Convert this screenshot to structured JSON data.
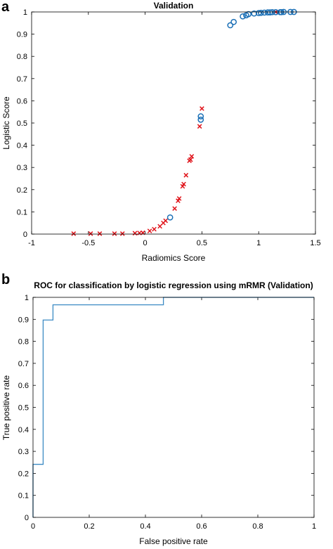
{
  "panels": {
    "a": {
      "label": "a"
    },
    "b": {
      "label": "b"
    }
  },
  "colors": {
    "cross": "#e0141b",
    "circle": "#1a6fb6",
    "roc_line": "#3b8ac4",
    "axis": "#000000"
  },
  "chart_data": [
    {
      "type": "scatter",
      "title": "Validation",
      "xlabel": "Radiomics Score",
      "ylabel": "Logistic Score",
      "xlim": [
        -1,
        1.5
      ],
      "ylim": [
        0,
        1
      ],
      "xticks": [
        -1,
        -0.5,
        0,
        0.5,
        1,
        1.5
      ],
      "xtick_labels": [
        "-1",
        "-0.5",
        "0",
        "0.5",
        "1",
        "1.5"
      ],
      "yticks": [
        0,
        0.1,
        0.2,
        0.3,
        0.4,
        0.5,
        0.6,
        0.7,
        0.8,
        0.9,
        1
      ],
      "ytick_labels": [
        "0",
        "0.1",
        "0.2",
        "0.3",
        "0.4",
        "0.5",
        "0.6",
        "0.7",
        "0.8",
        "0.9",
        "1"
      ],
      "grid": false,
      "series": [
        {
          "marker": "x",
          "color": "#e0141b",
          "points": [
            [
              -0.63,
              0.002
            ],
            [
              -0.48,
              0.002
            ],
            [
              -0.4,
              0.002
            ],
            [
              -0.27,
              0.002
            ],
            [
              -0.2,
              0.002
            ],
            [
              -0.09,
              0.004
            ],
            [
              -0.05,
              0.005
            ],
            [
              -0.02,
              0.006
            ],
            [
              0.04,
              0.014
            ],
            [
              0.08,
              0.022
            ],
            [
              0.13,
              0.035
            ],
            [
              0.16,
              0.05
            ],
            [
              0.18,
              0.06
            ],
            [
              0.26,
              0.115
            ],
            [
              0.29,
              0.15
            ],
            [
              0.3,
              0.16
            ],
            [
              0.33,
              0.215
            ],
            [
              0.34,
              0.225
            ],
            [
              0.36,
              0.265
            ],
            [
              0.39,
              0.33
            ],
            [
              0.4,
              0.335
            ],
            [
              0.41,
              0.35
            ],
            [
              0.48,
              0.485
            ],
            [
              0.5,
              0.565
            ],
            [
              1.15,
              1.0
            ]
          ]
        },
        {
          "marker": "o",
          "color": "#1a6fb6",
          "points": [
            [
              0.22,
              0.075
            ],
            [
              0.49,
              0.515
            ],
            [
              0.49,
              0.53
            ],
            [
              0.75,
              0.94
            ],
            [
              0.78,
              0.955
            ],
            [
              0.86,
              0.98
            ],
            [
              0.89,
              0.985
            ],
            [
              0.91,
              0.99
            ],
            [
              0.96,
              0.993
            ],
            [
              1.0,
              0.995
            ],
            [
              1.02,
              0.996
            ],
            [
              1.05,
              0.997
            ],
            [
              1.08,
              0.998
            ],
            [
              1.1,
              0.998
            ],
            [
              1.12,
              0.999
            ],
            [
              1.15,
              0.999
            ],
            [
              1.19,
              0.999
            ],
            [
              1.2,
              0.999
            ],
            [
              1.22,
              1.0
            ],
            [
              1.28,
              1.0
            ],
            [
              1.31,
              1.0
            ]
          ]
        }
      ]
    },
    {
      "type": "line",
      "title": "ROC for classification by logistic regression using mRMR (Validation)",
      "xlabel": "False positive rate",
      "ylabel": "True positive rate",
      "xlim": [
        0,
        1
      ],
      "ylim": [
        0,
        1
      ],
      "xticks": [
        0,
        0.2,
        0.4,
        0.6,
        0.8,
        1
      ],
      "xtick_labels": [
        "0",
        "0.2",
        "0.4",
        "0.6",
        "0.8",
        "1"
      ],
      "yticks": [
        0,
        0.1,
        0.2,
        0.3,
        0.4,
        0.5,
        0.6,
        0.7,
        0.8,
        0.9,
        1
      ],
      "ytick_labels": [
        "0",
        "0.1",
        "0.2",
        "0.3",
        "0.4",
        "0.5",
        "0.6",
        "0.7",
        "0.8",
        "0.9",
        "1"
      ],
      "grid": false,
      "series": [
        {
          "color": "#3b8ac4",
          "x": [
            0,
            0,
            0.036,
            0.036,
            0.071,
            0.071,
            0.464,
            0.464,
            1.0
          ],
          "y": [
            0,
            0.241,
            0.241,
            0.897,
            0.897,
            0.966,
            0.966,
            1.0,
            1.0
          ]
        }
      ]
    }
  ]
}
